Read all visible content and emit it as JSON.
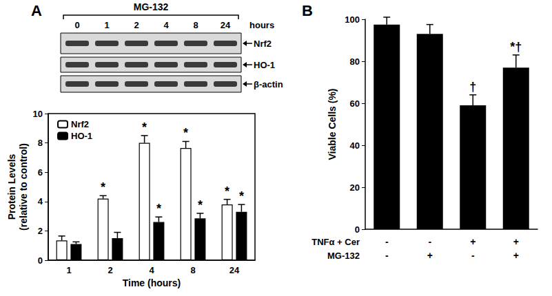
{
  "blot": {
    "title": "MG-132",
    "lanes": [
      "0",
      "1",
      "2",
      "4",
      "8",
      "24"
    ],
    "lane_unit": "hours",
    "rows": [
      "Nrf2",
      "HO-1",
      "β-actin"
    ]
  },
  "chart_data": [
    {
      "type": "bar",
      "title": "A",
      "xlabel": "Time (hours)",
      "ylabel": "Protein Levels\n(relative to control)",
      "categories": [
        "1",
        "2",
        "4",
        "8",
        "24"
      ],
      "series": [
        {
          "name": "Nrf2",
          "color": "#ffffff",
          "values": [
            1.35,
            4.2,
            8.0,
            7.65,
            3.8
          ],
          "errors": [
            0.3,
            0.2,
            0.5,
            0.45,
            0.35
          ],
          "annotations": [
            null,
            "*",
            "*",
            "*",
            "*"
          ]
        },
        {
          "name": "HO-1",
          "color": "#000000",
          "values": [
            1.1,
            1.5,
            2.6,
            2.85,
            3.3
          ],
          "errors": [
            0.15,
            0.4,
            0.35,
            0.35,
            0.5
          ],
          "annotations": [
            null,
            null,
            "*",
            "*",
            "*"
          ]
        }
      ],
      "ylim": [
        0,
        10
      ],
      "yticks": [
        0,
        2,
        4,
        6,
        8,
        10
      ],
      "grid": false,
      "legend": "upper left"
    },
    {
      "type": "bar",
      "title": "B",
      "ylabel": "Viable Cells (%)",
      "categories": [
        null,
        null,
        null,
        null
      ],
      "conditions": [
        {
          "label": "TNFα + Cer",
          "values": [
            "-",
            "-",
            "+",
            "+"
          ]
        },
        {
          "label": "MG-132",
          "values": [
            "-",
            "+",
            "-",
            "+"
          ]
        }
      ],
      "values": [
        97.5,
        93,
        59,
        77
      ],
      "errors": [
        3.5,
        4.5,
        5,
        6
      ],
      "annotations": [
        null,
        null,
        "†",
        "*†"
      ],
      "color": "#000000",
      "ylim": [
        0,
        100
      ],
      "yticks": [
        0,
        20,
        40,
        60,
        80,
        100
      ],
      "grid": false
    }
  ]
}
